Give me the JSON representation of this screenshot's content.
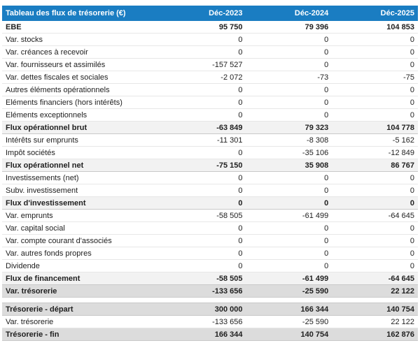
{
  "colors": {
    "header_bg": "#1a7dc2",
    "header_text": "#ffffff",
    "subtotal_row_bg": "#f2f2f2",
    "total_row_bg": "#dcdcdc",
    "row_border": "#e7e7e7",
    "strong_row_border": "#c9c9c9",
    "text": "#212121"
  },
  "table": {
    "header": {
      "label": "Tableau des flux de trésorerie (€)",
      "columns": [
        "Déc-2023",
        "Déc-2024",
        "Déc-2025"
      ]
    },
    "rows": [
      {
        "label": "EBE",
        "values": [
          "95 750",
          "79 396",
          "104 853"
        ],
        "style": "bold"
      },
      {
        "label": "Var. stocks",
        "values": [
          "0",
          "0",
          "0"
        ],
        "style": "normal"
      },
      {
        "label": "Var. créances à recevoir",
        "values": [
          "0",
          "0",
          "0"
        ],
        "style": "normal"
      },
      {
        "label": "Var. fournisseurs et assimilés",
        "values": [
          "-157 527",
          "0",
          "0"
        ],
        "style": "normal"
      },
      {
        "label": "Var. dettes fiscales et sociales",
        "values": [
          "-2 072",
          "-73",
          "-75"
        ],
        "style": "normal"
      },
      {
        "label": "Autres éléments opérationnels",
        "values": [
          "0",
          "0",
          "0"
        ],
        "style": "normal"
      },
      {
        "label": "Eléments financiers (hors intérêts)",
        "values": [
          "0",
          "0",
          "0"
        ],
        "style": "normal"
      },
      {
        "label": "Eléments exceptionnels",
        "values": [
          "0",
          "0",
          "0"
        ],
        "style": "normal"
      },
      {
        "label": "Flux opérationnel brut",
        "values": [
          "-63 849",
          "79 323",
          "104 778"
        ],
        "style": "subtotal"
      },
      {
        "label": "Intérêts sur emprunts",
        "values": [
          "-11 301",
          "-8 308",
          "-5 162"
        ],
        "style": "normal"
      },
      {
        "label": "Impôt sociétés",
        "values": [
          "0",
          "-35 106",
          "-12 849"
        ],
        "style": "normal"
      },
      {
        "label": "Flux opérationnel net",
        "values": [
          "-75 150",
          "35 908",
          "86 767"
        ],
        "style": "subtotal"
      },
      {
        "label": "Investissements (net)",
        "values": [
          "0",
          "0",
          "0"
        ],
        "style": "normal"
      },
      {
        "label": "Subv. investissement",
        "values": [
          "0",
          "0",
          "0"
        ],
        "style": "normal"
      },
      {
        "label": "Flux d'investissement",
        "values": [
          "0",
          "0",
          "0"
        ],
        "style": "subtotal"
      },
      {
        "label": "Var. emprunts",
        "values": [
          "-58 505",
          "-61 499",
          "-64 645"
        ],
        "style": "normal"
      },
      {
        "label": "Var. capital social",
        "values": [
          "0",
          "0",
          "0"
        ],
        "style": "normal"
      },
      {
        "label": "Var. compte courant d'associés",
        "values": [
          "0",
          "0",
          "0"
        ],
        "style": "normal"
      },
      {
        "label": "Var. autres fonds propres",
        "values": [
          "0",
          "0",
          "0"
        ],
        "style": "normal"
      },
      {
        "label": "Dividende",
        "values": [
          "0",
          "0",
          "0"
        ],
        "style": "normal"
      },
      {
        "label": "Flux de financement",
        "values": [
          "-58 505",
          "-61 499",
          "-64 645"
        ],
        "style": "subtotal"
      },
      {
        "label": "Var. trésorerie",
        "values": [
          "-133 656",
          "-25 590",
          "22 122"
        ],
        "style": "total"
      },
      {
        "label": "",
        "values": [
          "",
          "",
          ""
        ],
        "style": "spacer"
      },
      {
        "label": "Trésorerie - départ",
        "values": [
          "300 000",
          "166 344",
          "140 754"
        ],
        "style": "total"
      },
      {
        "label": "Var. trésorerie",
        "values": [
          "-133 656",
          "-25 590",
          "22 122"
        ],
        "style": "normal"
      },
      {
        "label": "Trésorerie - fin",
        "values": [
          "166 344",
          "140 754",
          "162 876"
        ],
        "style": "total"
      }
    ]
  }
}
